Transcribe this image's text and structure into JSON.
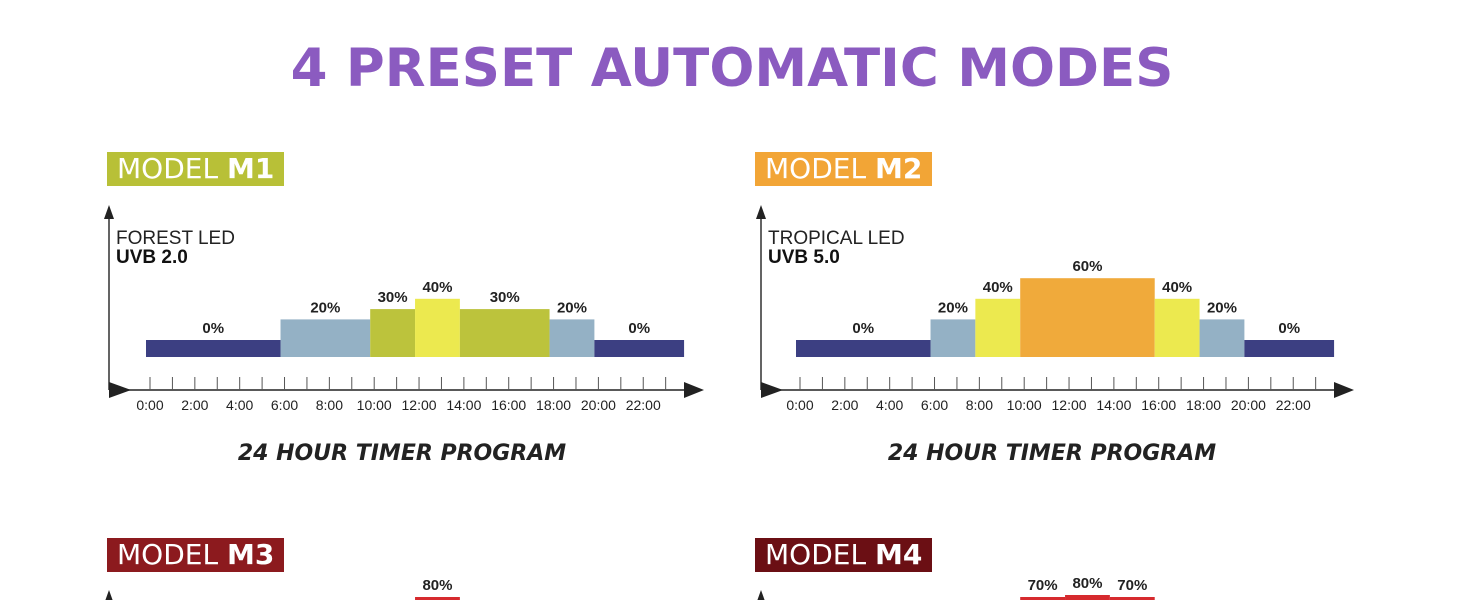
{
  "page": {
    "title": "4 PRESET AUTOMATIC MODES",
    "title_color": "#8b5bc0"
  },
  "chart_data": [
    {
      "type": "bar",
      "badge": {
        "prefix": "MODEL ",
        "code": "M1",
        "color": "#b8c037"
      },
      "label_line1": "FOREST LED",
      "label_line2": "UVB 2.0",
      "xlabel": "24 HOUR TIMER PROGRAM",
      "x_ticks": [
        "0:00",
        "2:00",
        "4:00",
        "6:00",
        "8:00",
        "10:00",
        "12:00",
        "14:00",
        "16:00",
        "18:00",
        "20:00",
        "22:00"
      ],
      "x_range": [
        0,
        24
      ],
      "segments": [
        {
          "start": 0,
          "end": 6,
          "value": 0,
          "label": "0%",
          "color": "#3c3f82"
        },
        {
          "start": 6,
          "end": 10,
          "value": 20,
          "label": "20%",
          "color": "#94b1c5"
        },
        {
          "start": 10,
          "end": 12,
          "value": 30,
          "label": "30%",
          "color": "#bcc33c"
        },
        {
          "start": 12,
          "end": 14,
          "value": 40,
          "label": "40%",
          "color": "#ece94f"
        },
        {
          "start": 14,
          "end": 18,
          "value": 30,
          "label": "30%",
          "color": "#bcc33c"
        },
        {
          "start": 18,
          "end": 20,
          "value": 20,
          "label": "20%",
          "color": "#94b1c5"
        },
        {
          "start": 20,
          "end": 24,
          "value": 0,
          "label": "0%",
          "color": "#3c3f82"
        }
      ]
    },
    {
      "type": "bar",
      "badge": {
        "prefix": "MODEL ",
        "code": "M2",
        "color": "#f2a536"
      },
      "label_line1": "TROPICAL LED",
      "label_line2": "UVB 5.0",
      "xlabel": "24 HOUR TIMER PROGRAM",
      "x_ticks": [
        "0:00",
        "2:00",
        "4:00",
        "6:00",
        "8:00",
        "10:00",
        "12:00",
        "14:00",
        "16:00",
        "18:00",
        "20:00",
        "22:00"
      ],
      "x_range": [
        0,
        24
      ],
      "segments": [
        {
          "start": 0,
          "end": 6,
          "value": 0,
          "label": "0%",
          "color": "#3c3f82"
        },
        {
          "start": 6,
          "end": 8,
          "value": 20,
          "label": "20%",
          "color": "#94b1c5"
        },
        {
          "start": 8,
          "end": 10,
          "value": 40,
          "label": "40%",
          "color": "#ece94f"
        },
        {
          "start": 10,
          "end": 16,
          "value": 60,
          "label": "60%",
          "color": "#f0aa3b"
        },
        {
          "start": 16,
          "end": 18,
          "value": 40,
          "label": "40%",
          "color": "#ece94f"
        },
        {
          "start": 18,
          "end": 20,
          "value": 20,
          "label": "20%",
          "color": "#94b1c5"
        },
        {
          "start": 20,
          "end": 24,
          "value": 0,
          "label": "0%",
          "color": "#3c3f82"
        }
      ]
    },
    {
      "type": "bar",
      "badge": {
        "prefix": "MODEL ",
        "code": "M3",
        "color": "#8c1a1e"
      },
      "segments": [
        {
          "start": 12,
          "end": 14,
          "value": 80,
          "label": "80%",
          "color": "#d62a2e"
        }
      ]
    },
    {
      "type": "bar",
      "badge": {
        "prefix": "MODEL ",
        "code": "M4",
        "color": "#6b0f14"
      },
      "segments": [
        {
          "start": 10,
          "end": 12,
          "value": 70,
          "label": "70%",
          "color": "#d62a2e"
        },
        {
          "start": 12,
          "end": 14,
          "value": 80,
          "label": "80%",
          "color": "#d62a2e"
        },
        {
          "start": 14,
          "end": 16,
          "value": 70,
          "label": "70%",
          "color": "#d62a2e"
        }
      ]
    }
  ]
}
